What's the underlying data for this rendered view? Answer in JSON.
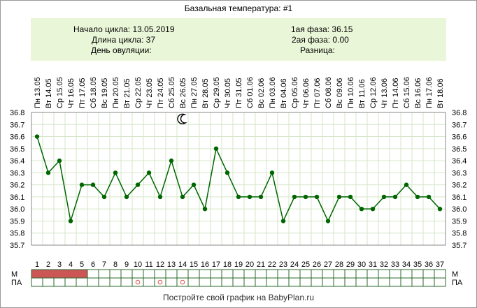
{
  "header": {
    "title": "Базальная температура: #1"
  },
  "info": {
    "cycle_start": "Начало цикла: 13.05.2019",
    "cycle_length": "Длина цикла: 37",
    "ovulation_day": "День овуляции:",
    "phase1": "1ая фаза: 36.15",
    "phase2": "2ая фаза: 0.00",
    "difference": "Разница:"
  },
  "chart_data": {
    "type": "line",
    "title": "Базальная температура: #1",
    "x_days": [
      1,
      2,
      3,
      4,
      5,
      6,
      7,
      8,
      9,
      10,
      11,
      12,
      13,
      14,
      15,
      16,
      17,
      18,
      19,
      20,
      21,
      22,
      23,
      24,
      25,
      26,
      27,
      28,
      29,
      30,
      31,
      32,
      33,
      34,
      35,
      36,
      37
    ],
    "x_dates": [
      "Пн 13.05",
      "Вт 14.05",
      "Ср 15.05",
      "Чт 16.05",
      "Пт 17.05",
      "Сб 18.05",
      "Вс 19.05",
      "Пн 20.05",
      "Вт 21.05",
      "Ср 22.05",
      "Чт 23.05",
      "Пт 24.05",
      "Сб 25.05",
      "Вс 26.05",
      "Пн 27.05",
      "Вт 28.05",
      "Ср 29.05",
      "Чт 30.05",
      "Пт 31.05",
      "Сб 01.06",
      "Вс 02.06",
      "Пн 03.06",
      "Вт 04.06",
      "Ср 05.06",
      "Чт 06.06",
      "Пт 07.06",
      "Сб 08.06",
      "Вс 09.06",
      "Пн 10.06",
      "Вт 11.06",
      "Ср 12.06",
      "Чт 13.06",
      "Пт 14.06",
      "Сб 15.06",
      "Вс 16.06",
      "Пн 17.06",
      "Вт 18.06"
    ],
    "y_ticks": [
      "36.8",
      "36.7",
      "36.6",
      "36.5",
      "36.4",
      "36.3",
      "36.2",
      "36.1",
      "36.0",
      "35.9",
      "35.8",
      "35.7"
    ],
    "ylim": [
      35.7,
      36.8
    ],
    "series": [
      {
        "values": [
          36.6,
          36.3,
          36.4,
          35.9,
          36.2,
          36.2,
          36.1,
          36.3,
          36.1,
          36.2,
          36.3,
          36.1,
          36.4,
          36.1,
          36.2,
          36.0,
          36.5,
          36.3,
          36.1,
          36.1,
          36.1,
          36.3,
          35.9,
          36.1,
          36.1,
          36.1,
          35.9,
          36.1,
          36.1,
          36.0,
          36.0,
          36.1,
          36.1,
          36.2,
          36.1,
          36.1,
          36.0
        ]
      }
    ],
    "line_color": "#006600",
    "grid": true,
    "moon_day": 14,
    "row_labels": {
      "m": "М",
      "pa": "ПА"
    },
    "menstruation_days": [
      1,
      2,
      3,
      4,
      5
    ],
    "menstruation_color": "#cc5555",
    "pa_days": [
      10,
      12,
      14
    ],
    "pa_marker_color": "#dd5555"
  },
  "footer": {
    "text": "Постройте свой график на BabyPlan.ru"
  }
}
